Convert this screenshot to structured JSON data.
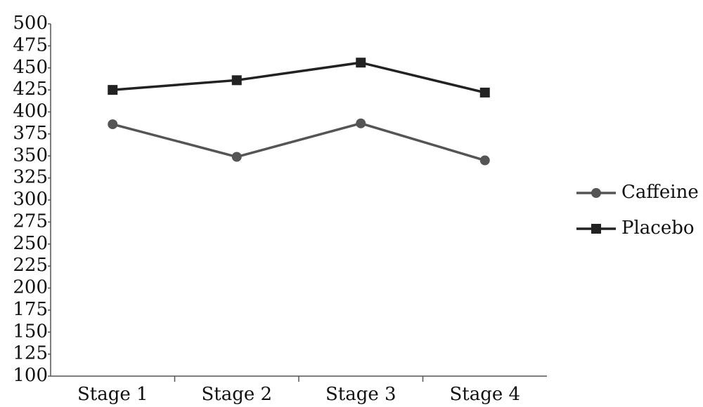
{
  "chart_data": {
    "type": "line",
    "categories": [
      "Stage 1",
      "Stage 2",
      "Stage 3",
      "Stage 4"
    ],
    "series": [
      {
        "name": "Caffeine",
        "color": "#555555",
        "marker": "circle",
        "values": [
          386,
          349,
          387,
          345
        ]
      },
      {
        "name": "Placebo",
        "color": "#222222",
        "marker": "square",
        "values": [
          425,
          436,
          456,
          422
        ]
      }
    ],
    "ylim": [
      100,
      500
    ],
    "yticks": [
      100,
      125,
      150,
      175,
      200,
      225,
      250,
      275,
      300,
      325,
      350,
      375,
      400,
      425,
      450,
      475,
      500
    ],
    "grid": false,
    "legend": "right"
  }
}
